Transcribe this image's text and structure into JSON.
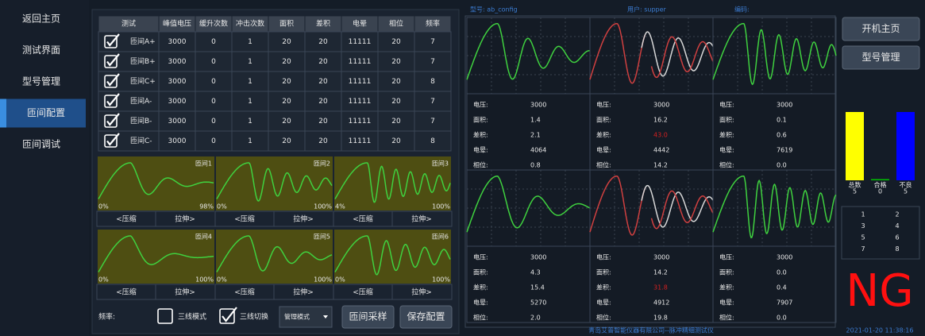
{
  "sidebar": {
    "items": [
      "返回主页",
      "测试界面",
      "型号管理",
      "匝间配置",
      "匝间调试"
    ],
    "active": 3
  },
  "table": {
    "header": [
      "测试",
      "峰值电压",
      "缓升次数",
      "冲击次数",
      "面积",
      "差积",
      "电晕",
      "相位",
      "频率"
    ],
    "rows": [
      [
        "匝间A+",
        3000,
        0,
        1,
        20,
        20,
        11111,
        20,
        7
      ],
      [
        "匝间B+",
        3000,
        0,
        1,
        20,
        20,
        11111,
        20,
        7
      ],
      [
        "匝间C+",
        3000,
        0,
        1,
        20,
        20,
        11111,
        20,
        8
      ],
      [
        "匝间A-",
        3000,
        0,
        1,
        20,
        20,
        11111,
        20,
        7
      ],
      [
        "匝间B-",
        3000,
        0,
        1,
        20,
        20,
        11111,
        20,
        7
      ],
      [
        "匝间C-",
        3000,
        0,
        1,
        20,
        20,
        11111,
        20,
        8
      ]
    ]
  },
  "waveforms": {
    "panels": [
      {
        "name": "匝间1",
        "left": "0%",
        "right": "98%"
      },
      {
        "name": "匝间2",
        "left": "0%",
        "right": "100%"
      },
      {
        "name": "匝间3",
        "left": "4%",
        "right": "100%"
      },
      {
        "name": "匝间4",
        "left": "0%",
        "right": "100%"
      },
      {
        "name": "匝间5",
        "left": "0%",
        "right": "100%"
      },
      {
        "name": "匝间6",
        "left": "0%",
        "right": "100%"
      }
    ],
    "compress": "<压缩",
    "stretch": "拉伸>"
  },
  "controls": {
    "freq_label": "频率:",
    "mode1": "三线模式",
    "mode2": "三线切换",
    "dropdown": "管理模式",
    "sample": "匝间采样",
    "save": "保存配置"
  },
  "header": {
    "model": "型号: ab_config",
    "user": "用户: supper",
    "code": "编码:"
  },
  "cells": [
    {
      "stats": [
        {
          "label": "电压:",
          "value": "3000"
        },
        {
          "label": "面积:",
          "value": "1.4"
        },
        {
          "label": "差积:",
          "value": "2.1"
        },
        {
          "label": "电晕:",
          "value": "4064"
        },
        {
          "label": "相位:",
          "value": "0.8"
        }
      ]
    },
    {
      "stats": [
        {
          "label": "电压:",
          "value": "3000"
        },
        {
          "label": "面积:",
          "value": "16.2"
        },
        {
          "label": "差积:",
          "value": "43.0",
          "color": "#d42020"
        },
        {
          "label": "电晕:",
          "value": "4442"
        },
        {
          "label": "相位:",
          "value": "14.2"
        }
      ]
    },
    {
      "stats": [
        {
          "label": "电压:",
          "value": "3000"
        },
        {
          "label": "面积:",
          "value": "0.1"
        },
        {
          "label": "差积:",
          "value": "0.6"
        },
        {
          "label": "电晕:",
          "value": "7619"
        },
        {
          "label": "相位:",
          "value": "0.0"
        }
      ]
    },
    {
      "stats": [
        {
          "label": "电压:",
          "value": "3000"
        },
        {
          "label": "面积:",
          "value": "4.3"
        },
        {
          "label": "差积:",
          "value": "15.4"
        },
        {
          "label": "电晕:",
          "value": "5270"
        },
        {
          "label": "相位:",
          "value": "2.0"
        }
      ]
    },
    {
      "stats": [
        {
          "label": "电压:",
          "value": "3000"
        },
        {
          "label": "面积:",
          "value": "14.2"
        },
        {
          "label": "差积:",
          "value": "31.8",
          "color": "#d42020"
        },
        {
          "label": "电晕:",
          "value": "4912"
        },
        {
          "label": "相位:",
          "value": "19.8"
        }
      ]
    },
    {
      "stats": [
        {
          "label": "电压:",
          "value": "3000"
        },
        {
          "label": "面积:",
          "value": "0.0"
        },
        {
          "label": "差积:",
          "value": "0.4"
        },
        {
          "label": "电晕:",
          "value": "7907"
        },
        {
          "label": "相位:",
          "value": "0.0"
        }
      ]
    }
  ],
  "right_buttons": [
    "开机主页",
    "型号管理"
  ],
  "counts": {
    "bars": [
      {
        "label": "总数",
        "value": 5,
        "color": "#ffff00"
      },
      {
        "label": "合格",
        "value": 0,
        "color": "#00c000"
      },
      {
        "label": "不良",
        "value": 5,
        "color": "#0000ff"
      }
    ]
  },
  "slots": [
    "1",
    "2",
    "3",
    "4",
    "5",
    "6",
    "7",
    "8"
  ],
  "result": "NG",
  "footer": {
    "company": "青岛艾普智能仪器有限公司--脉冲精细测试仪",
    "time": "2021-01-20 11:38:16"
  }
}
